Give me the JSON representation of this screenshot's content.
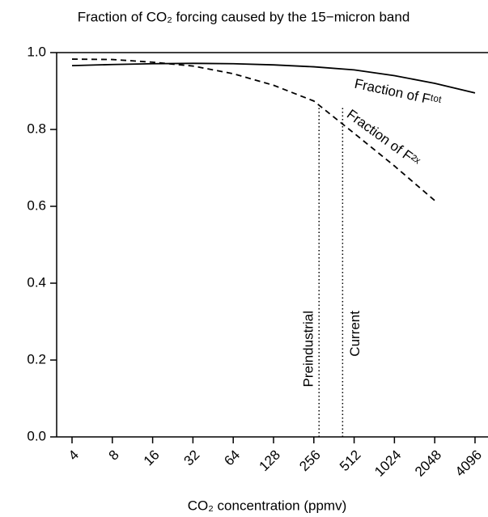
{
  "chart_data": {
    "type": "line",
    "title": "Fraction of CO₂ forcing caused by the 15−micron band",
    "x_label": "CO₂ concentration (ppmv)",
    "x": [
      4,
      8,
      16,
      32,
      64,
      128,
      256,
      512,
      1024,
      2048,
      4096
    ],
    "series": [
      {
        "name": "Fraction of Fᵗᵒᵗ",
        "color": "#000000",
        "dash": "solid",
        "values": [
          0.966,
          0.969,
          0.971,
          0.972,
          0.971,
          0.968,
          0.963,
          0.955,
          0.94,
          0.92,
          0.895
        ]
      },
      {
        "name": "Fraction of F²ˣ",
        "color": "#000000",
        "dash": "dashed",
        "values": [
          0.983,
          0.982,
          0.975,
          0.965,
          0.945,
          0.915,
          0.874,
          0.79,
          0.705,
          0.615,
          null
        ]
      }
    ],
    "vlines": [
      {
        "x": 280,
        "label": "Preindustrial"
      },
      {
        "x": 420,
        "label": "Current"
      }
    ],
    "xscale": "log2",
    "xlim": [
      3.07,
      5120
    ],
    "xticks": [
      4,
      8,
      16,
      32,
      64,
      128,
      256,
      512,
      1024,
      2048,
      4096
    ],
    "ylim": [
      0,
      1
    ],
    "yticks": [
      {
        "value": 0,
        "label": "0.0"
      },
      {
        "value": 0.2,
        "label": "0.2"
      },
      {
        "value": 0.4,
        "label": "0.4"
      },
      {
        "value": 0.6,
        "label": "0.6"
      },
      {
        "value": 0.8,
        "label": "0.8"
      },
      {
        "value": 1,
        "label": "1.0"
      }
    ]
  }
}
